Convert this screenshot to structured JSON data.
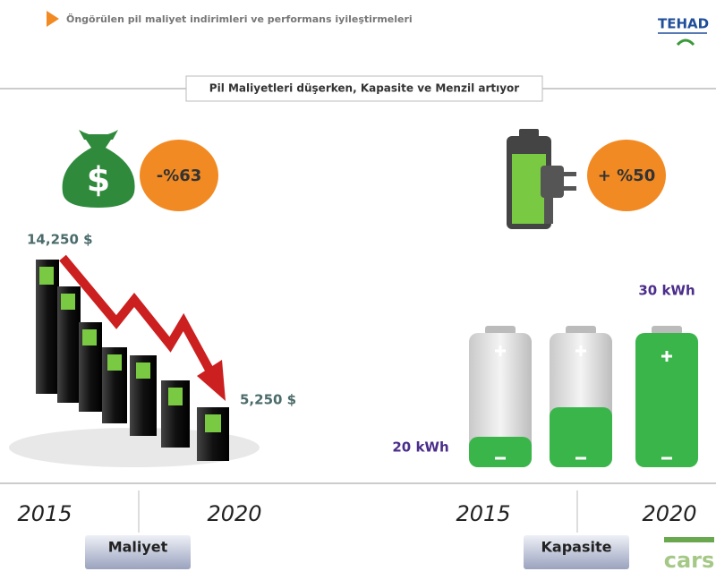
{
  "header": {
    "title": "Öngörülen pil maliyet indirimleri ve performans iyileştirmeleri",
    "logo": "TEHAD"
  },
  "banner": "Pil Maliyetleri düşerken, Kapasite ve Menzil artıyor",
  "cost": {
    "icon_symbol": "$",
    "change": "-%63",
    "start_value": "14,250 $",
    "end_value": "5,250 $",
    "years": [
      "2015",
      "2020"
    ],
    "label": "Maliyet"
  },
  "capacity": {
    "change": "+ %50",
    "start_value": "20 kWh",
    "end_value": "30 kWh",
    "years": [
      "2015",
      "2020"
    ],
    "label": "Kapasite"
  },
  "footer_logo": "cars"
}
